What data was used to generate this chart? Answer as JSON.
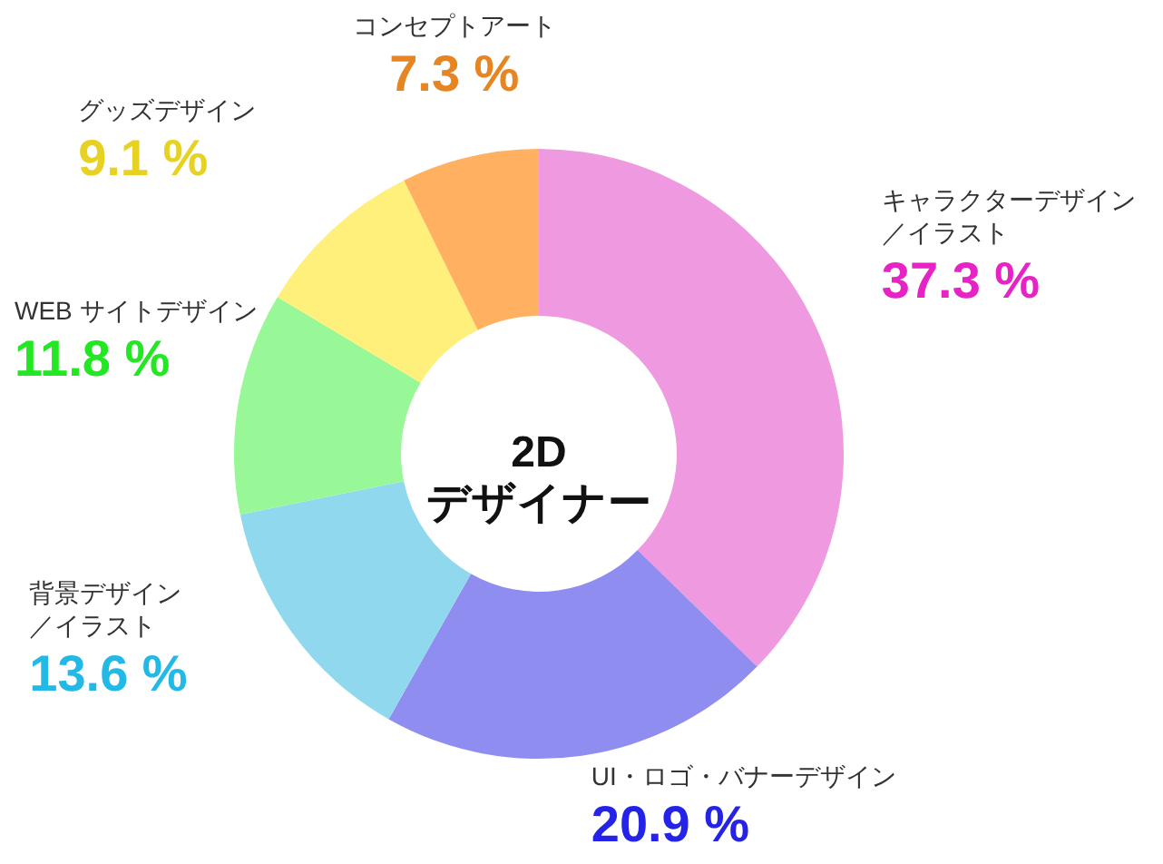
{
  "chart_data": {
    "type": "donut",
    "title": "2D\nデザイナー",
    "categories": [
      "キャラクターデザイン／イラスト",
      "UI・ロゴ・バナーデザイン",
      "背景デザイン／イラスト",
      "WEB サイトデザイン",
      "グッズデザイン",
      "コンセプトアート"
    ],
    "values": [
      37.3,
      20.9,
      13.6,
      11.8,
      9.1,
      7.3
    ],
    "value_labels": [
      "37.3 %",
      "20.9 %",
      "13.6 %",
      "11.8 %",
      "9.1 %",
      "7.3 %"
    ],
    "colors": [
      "#ee99e0",
      "#8f8ef0",
      "#90d8ee",
      "#98f898",
      "#fef07a",
      "#ffb060"
    ]
  }
}
